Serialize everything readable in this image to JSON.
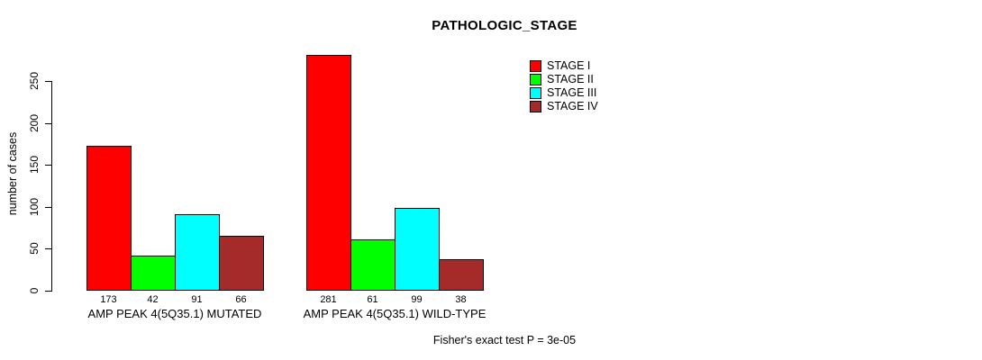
{
  "chart_data": {
    "type": "bar",
    "title": "PATHOLOGIC_STAGE",
    "ylabel": "number of cases",
    "yticks": [
      0,
      50,
      100,
      150,
      200,
      250
    ],
    "ylim": [
      0,
      283
    ],
    "grid": false,
    "legend_position": "top-right",
    "categories": [
      "AMP PEAK 4(5Q35.1) MUTATED",
      "AMP PEAK 4(5Q35.1) WILD-TYPE"
    ],
    "groups": [
      {
        "label": "AMP PEAK 4(5Q35.1) MUTATED",
        "values": [
          173,
          42,
          91,
          66
        ]
      },
      {
        "label": "AMP PEAK 4(5Q35.1) WILD-TYPE",
        "values": [
          281,
          61,
          99,
          38
        ]
      }
    ],
    "series": [
      {
        "name": "STAGE I",
        "color": "#FF0000",
        "values": [
          173,
          281
        ]
      },
      {
        "name": "STAGE II",
        "color": "#00FF00",
        "values": [
          42,
          61
        ]
      },
      {
        "name": "STAGE III",
        "color": "#00FFFF",
        "values": [
          91,
          99
        ]
      },
      {
        "name": "STAGE IV",
        "color": "#A52A2A",
        "values": [
          66,
          38
        ]
      }
    ],
    "annotation": "Fisher's exact test P = 3e-05"
  }
}
